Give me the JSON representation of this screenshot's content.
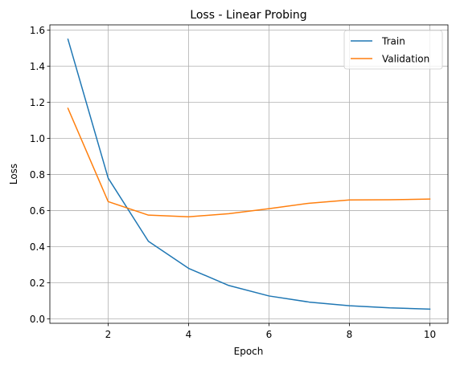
{
  "chart_data": {
    "type": "line",
    "title": "Loss - Linear Probing",
    "xlabel": "Epoch",
    "ylabel": "Loss",
    "xlim": [
      0.55,
      10.45
    ],
    "ylim": [
      -0.0245,
      1.6296
    ],
    "xticks": [
      2,
      4,
      6,
      8,
      10
    ],
    "yticks": [
      0.0,
      0.2,
      0.4,
      0.6,
      0.8,
      1.0,
      1.2,
      1.4,
      1.6
    ],
    "xtick_labels": [
      "2",
      "4",
      "6",
      "8",
      "10"
    ],
    "ytick_labels": [
      "0.0",
      "0.2",
      "0.4",
      "0.6",
      "0.8",
      "1.0",
      "1.2",
      "1.4",
      "1.6"
    ],
    "grid": true,
    "legend_position": "top-right",
    "x": [
      1,
      2,
      3,
      4,
      5,
      6,
      7,
      8,
      9,
      10
    ],
    "series": [
      {
        "name": "Train",
        "color": "#1f77b4",
        "values": [
          1.55,
          0.78,
          0.43,
          0.28,
          0.185,
          0.127,
          0.093,
          0.073,
          0.061,
          0.054
        ]
      },
      {
        "name": "Validation",
        "color": "#ff7f0e",
        "values": [
          1.167,
          0.65,
          0.575,
          0.566,
          0.583,
          0.611,
          0.641,
          0.659,
          0.66,
          0.664
        ]
      }
    ]
  }
}
